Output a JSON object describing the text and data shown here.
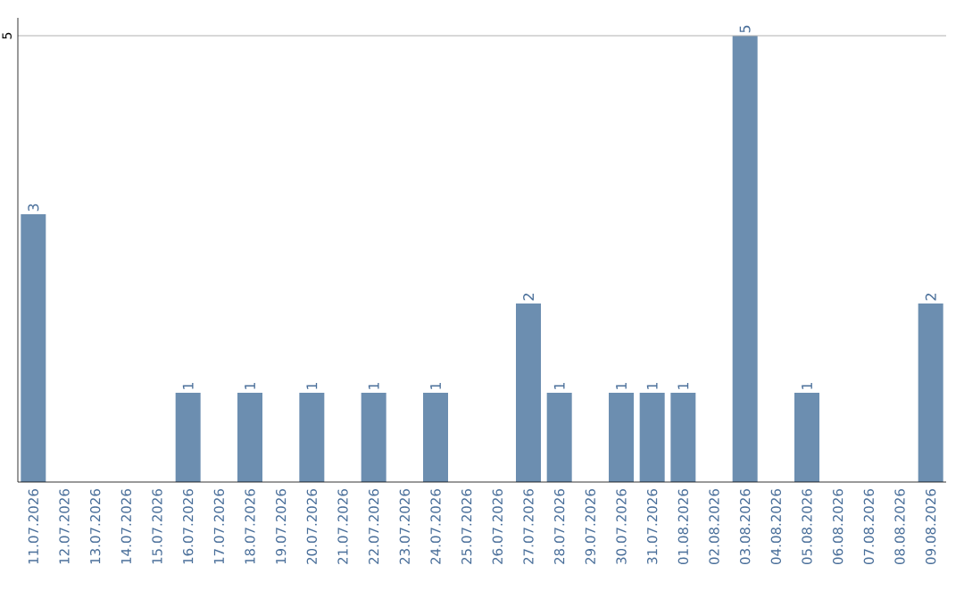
{
  "chart_data": {
    "type": "bar",
    "categories": [
      "11.07.2026",
      "12.07.2026",
      "13.07.2026",
      "14.07.2026",
      "15.07.2026",
      "16.07.2026",
      "17.07.2026",
      "18.07.2026",
      "19.07.2026",
      "20.07.2026",
      "21.07.2026",
      "22.07.2026",
      "23.07.2026",
      "24.07.2026",
      "25.07.2026",
      "26.07.2026",
      "27.07.2026",
      "28.07.2026",
      "29.07.2026",
      "30.07.2026",
      "31.07.2026",
      "01.08.2026",
      "02.08.2026",
      "03.08.2026",
      "04.08.2026",
      "05.08.2026",
      "06.08.2026",
      "07.08.2026",
      "08.08.2026",
      "09.08.2026"
    ],
    "values": [
      3,
      0,
      0,
      0,
      0,
      1,
      0,
      1,
      0,
      1,
      0,
      1,
      0,
      1,
      0,
      0,
      2,
      1,
      0,
      1,
      1,
      1,
      0,
      5,
      0,
      1,
      0,
      0,
      0,
      2
    ],
    "value_labels": [
      "3",
      null,
      null,
      null,
      null,
      "1",
      null,
      "1",
      null,
      "1",
      null,
      "1",
      null,
      "1",
      null,
      null,
      "2",
      "1",
      null,
      "1",
      "1",
      "1",
      null,
      "5",
      null,
      "1",
      null,
      null,
      null,
      "2"
    ],
    "color": "#6c8eb0",
    "ylim": [
      0,
      5.2
    ],
    "yticks": [
      5
    ],
    "grid": "y"
  }
}
